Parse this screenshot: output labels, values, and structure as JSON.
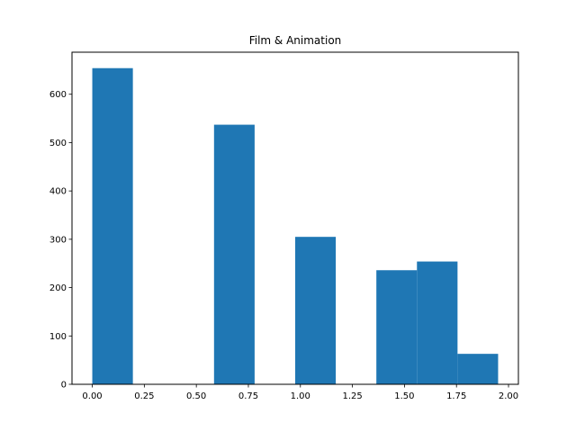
{
  "chart_data": {
    "type": "bar",
    "title": "Film & Animation",
    "xlabel": "",
    "ylabel": "",
    "bins": [
      {
        "x0": 0.0,
        "x1": 0.195,
        "count": 654
      },
      {
        "x0": 0.195,
        "x1": 0.39,
        "count": 0
      },
      {
        "x0": 0.39,
        "x1": 0.585,
        "count": 0
      },
      {
        "x0": 0.585,
        "x1": 0.78,
        "count": 537
      },
      {
        "x0": 0.78,
        "x1": 0.975,
        "count": 0
      },
      {
        "x0": 0.975,
        "x1": 1.17,
        "count": 305
      },
      {
        "x0": 1.17,
        "x1": 1.365,
        "count": 0
      },
      {
        "x0": 1.365,
        "x1": 1.56,
        "count": 236
      },
      {
        "x0": 1.56,
        "x1": 1.755,
        "count": 254
      },
      {
        "x0": 1.755,
        "x1": 1.95,
        "count": 63
      }
    ],
    "xlim": [
      -0.0975,
      2.0475
    ],
    "ylim": [
      0,
      687
    ],
    "xticks": [
      {
        "value": 0.0,
        "label": "0.00"
      },
      {
        "value": 0.25,
        "label": "0.25"
      },
      {
        "value": 0.5,
        "label": "0.50"
      },
      {
        "value": 0.75,
        "label": "0.75"
      },
      {
        "value": 1.0,
        "label": "1.00"
      },
      {
        "value": 1.25,
        "label": "1.25"
      },
      {
        "value": 1.5,
        "label": "1.50"
      },
      {
        "value": 1.75,
        "label": "1.75"
      },
      {
        "value": 2.0,
        "label": "2.00"
      }
    ],
    "yticks": [
      {
        "value": 0,
        "label": "0"
      },
      {
        "value": 100,
        "label": "100"
      },
      {
        "value": 200,
        "label": "200"
      },
      {
        "value": 300,
        "label": "300"
      },
      {
        "value": 400,
        "label": "400"
      },
      {
        "value": 500,
        "label": "500"
      },
      {
        "value": 600,
        "label": "600"
      }
    ],
    "grid": false,
    "bar_color": "#1f77b4"
  }
}
